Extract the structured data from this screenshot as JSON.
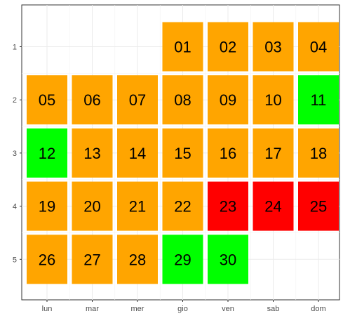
{
  "chart_data": {
    "type": "heatmap",
    "title": "",
    "xlabel": "",
    "ylabel": "",
    "x_categories": [
      "lun",
      "mar",
      "mer",
      "gio",
      "ven",
      "sab",
      "dom"
    ],
    "y_categories": [
      "1",
      "2",
      "3",
      "4",
      "5"
    ],
    "grid": true,
    "legend": "none",
    "colors": {
      "orange": "#ffa500",
      "green": "#00ff00",
      "red": "#ff0000"
    },
    "cells": [
      {
        "label": "01",
        "x": "gio",
        "y": "1",
        "fill": "orange"
      },
      {
        "label": "02",
        "x": "ven",
        "y": "1",
        "fill": "orange"
      },
      {
        "label": "03",
        "x": "sab",
        "y": "1",
        "fill": "orange"
      },
      {
        "label": "04",
        "x": "dom",
        "y": "1",
        "fill": "orange"
      },
      {
        "label": "05",
        "x": "lun",
        "y": "2",
        "fill": "orange"
      },
      {
        "label": "06",
        "x": "mar",
        "y": "2",
        "fill": "orange"
      },
      {
        "label": "07",
        "x": "mer",
        "y": "2",
        "fill": "orange"
      },
      {
        "label": "08",
        "x": "gio",
        "y": "2",
        "fill": "orange"
      },
      {
        "label": "09",
        "x": "ven",
        "y": "2",
        "fill": "orange"
      },
      {
        "label": "10",
        "x": "sab",
        "y": "2",
        "fill": "orange"
      },
      {
        "label": "11",
        "x": "dom",
        "y": "2",
        "fill": "green"
      },
      {
        "label": "12",
        "x": "lun",
        "y": "3",
        "fill": "green"
      },
      {
        "label": "13",
        "x": "mar",
        "y": "3",
        "fill": "orange"
      },
      {
        "label": "14",
        "x": "mer",
        "y": "3",
        "fill": "orange"
      },
      {
        "label": "15",
        "x": "gio",
        "y": "3",
        "fill": "orange"
      },
      {
        "label": "16",
        "x": "ven",
        "y": "3",
        "fill": "orange"
      },
      {
        "label": "17",
        "x": "sab",
        "y": "3",
        "fill": "orange"
      },
      {
        "label": "18",
        "x": "dom",
        "y": "3",
        "fill": "orange"
      },
      {
        "label": "19",
        "x": "lun",
        "y": "4",
        "fill": "orange"
      },
      {
        "label": "20",
        "x": "mar",
        "y": "4",
        "fill": "orange"
      },
      {
        "label": "21",
        "x": "mer",
        "y": "4",
        "fill": "orange"
      },
      {
        "label": "22",
        "x": "gio",
        "y": "4",
        "fill": "orange"
      },
      {
        "label": "23",
        "x": "ven",
        "y": "4",
        "fill": "red"
      },
      {
        "label": "24",
        "x": "sab",
        "y": "4",
        "fill": "red"
      },
      {
        "label": "25",
        "x": "dom",
        "y": "4",
        "fill": "red"
      },
      {
        "label": "26",
        "x": "lun",
        "y": "5",
        "fill": "orange"
      },
      {
        "label": "27",
        "x": "mar",
        "y": "5",
        "fill": "orange"
      },
      {
        "label": "28",
        "x": "mer",
        "y": "5",
        "fill": "orange"
      },
      {
        "label": "29",
        "x": "gio",
        "y": "5",
        "fill": "green"
      },
      {
        "label": "30",
        "x": "ven",
        "y": "5",
        "fill": "green"
      }
    ]
  }
}
